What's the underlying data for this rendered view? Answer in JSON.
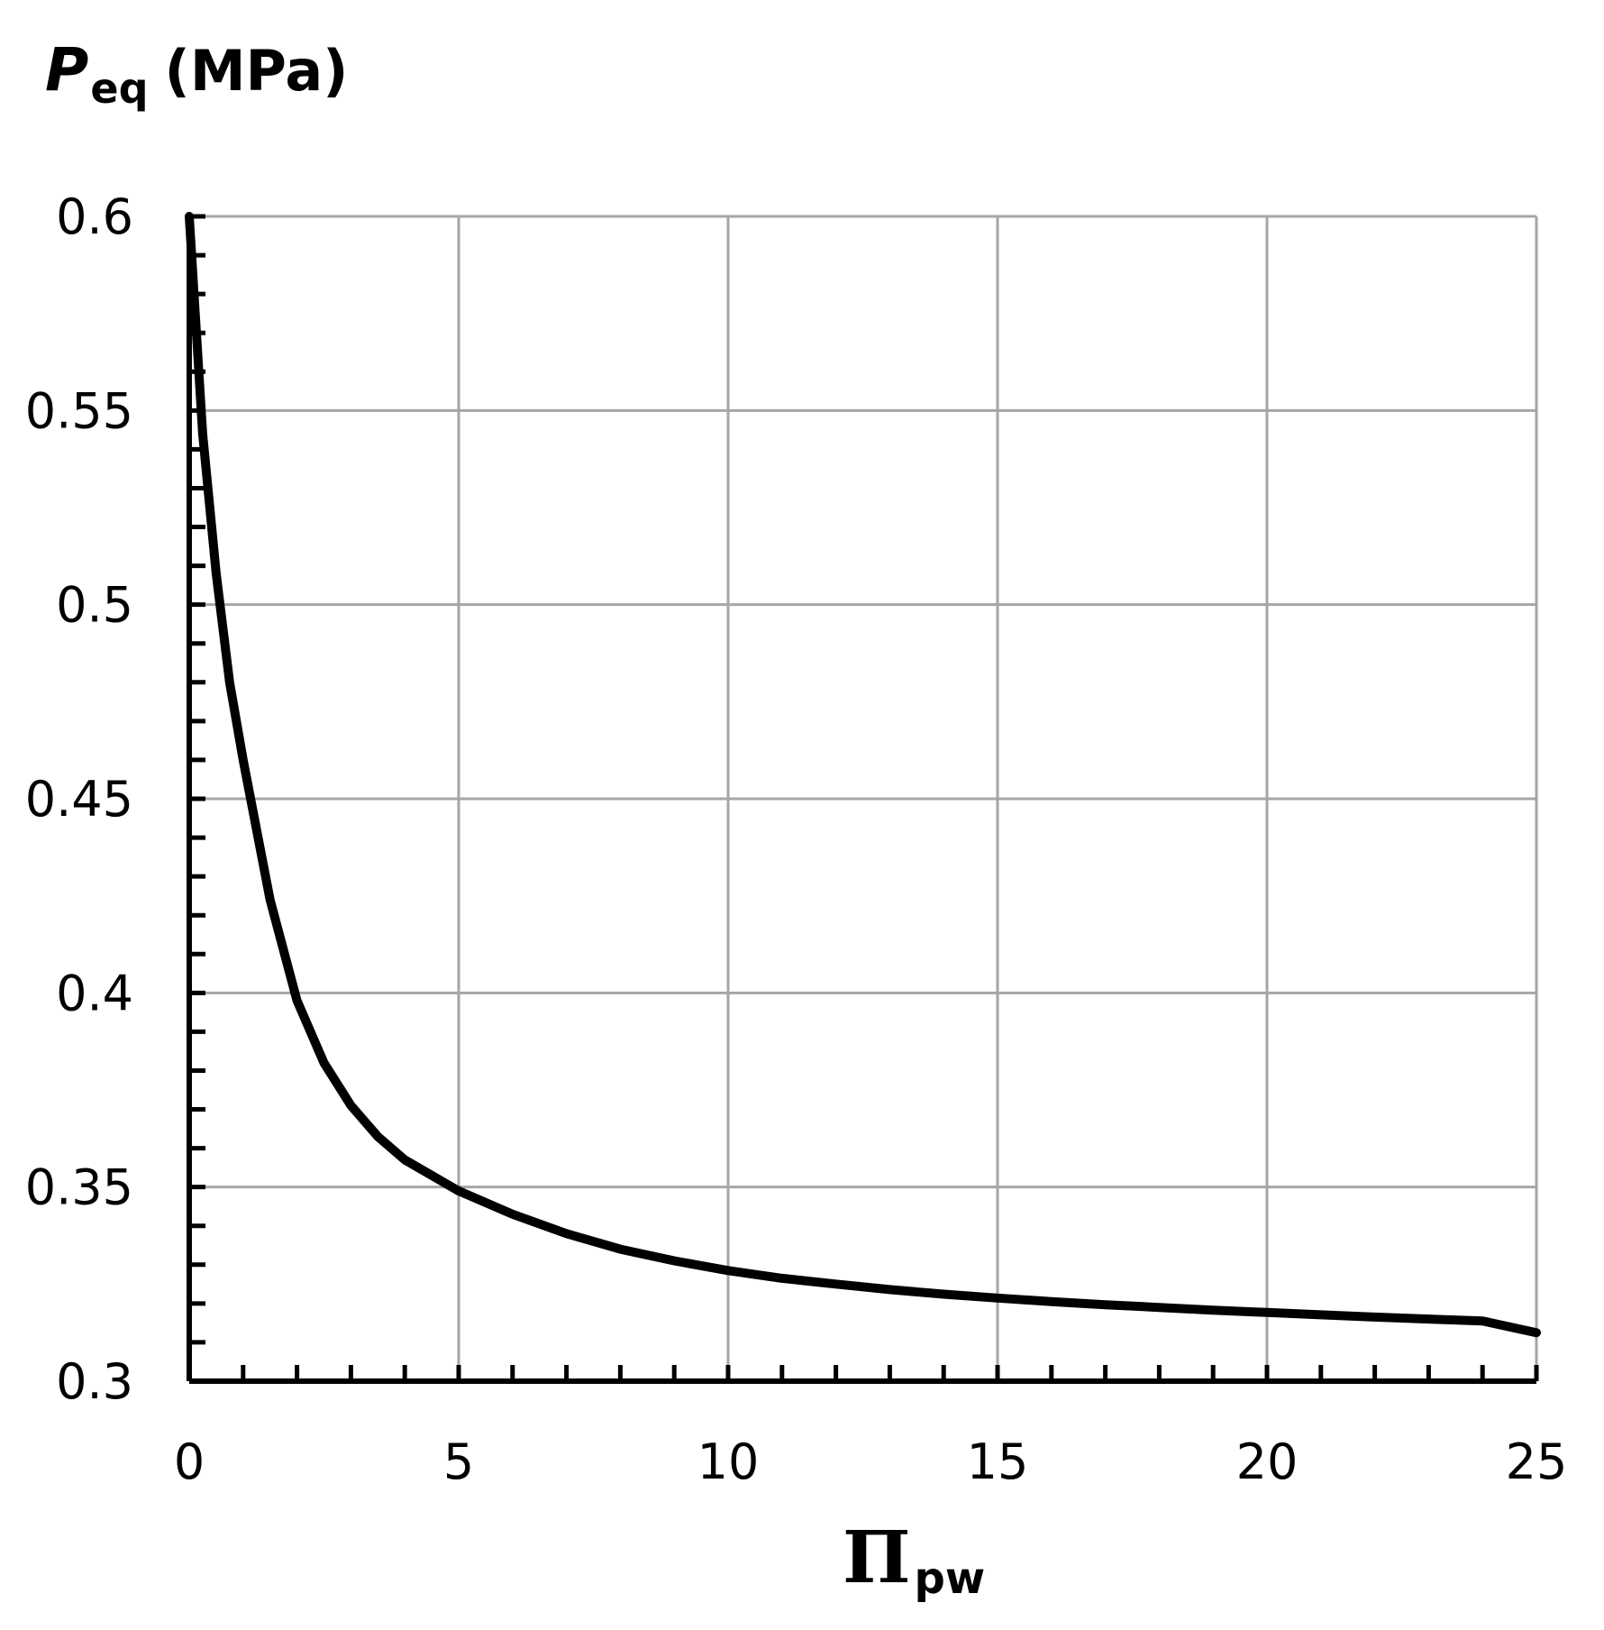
{
  "chart_data": {
    "type": "line",
    "ylabel": {
      "symbol": "P",
      "subscript": "eq",
      "unit": "(MPa)"
    },
    "xlabel": {
      "symbol": "Π",
      "subscript": "pw"
    },
    "xlim": [
      0,
      25
    ],
    "ylim": [
      0.3,
      0.6
    ],
    "x_ticks": [
      0,
      5,
      10,
      15,
      20,
      25
    ],
    "x_tick_labels": [
      "0",
      "5",
      "10",
      "15",
      "20",
      "25"
    ],
    "y_ticks": [
      0.3,
      0.35,
      0.4,
      0.45,
      0.5,
      0.55,
      0.6
    ],
    "y_tick_labels": [
      "0.3",
      "0.35",
      "0.4",
      "0.45",
      "0.5",
      "0.55",
      "0.6"
    ],
    "x_minor_step": 1,
    "y_minor_step": 0.01,
    "grid": true,
    "series": [
      {
        "color": "#000000",
        "x": [
          0,
          0.25,
          0.5,
          0.75,
          1,
          1.5,
          2,
          2.5,
          3,
          3.5,
          4,
          5,
          6,
          7,
          8,
          9,
          10,
          11,
          12,
          13,
          14,
          15,
          16,
          17,
          18,
          19,
          20,
          21,
          22,
          23,
          24,
          25
        ],
        "y": [
          0.6,
          0.544,
          0.508,
          0.48,
          0.46,
          0.424,
          0.398,
          0.382,
          0.371,
          0.363,
          0.357,
          0.349,
          0.343,
          0.338,
          0.334,
          0.331,
          0.3285,
          0.3265,
          0.325,
          0.3236,
          0.3224,
          0.3214,
          0.3205,
          0.3197,
          0.319,
          0.3183,
          0.3177,
          0.3171,
          0.3165,
          0.316,
          0.3155,
          0.3125
        ]
      }
    ]
  }
}
